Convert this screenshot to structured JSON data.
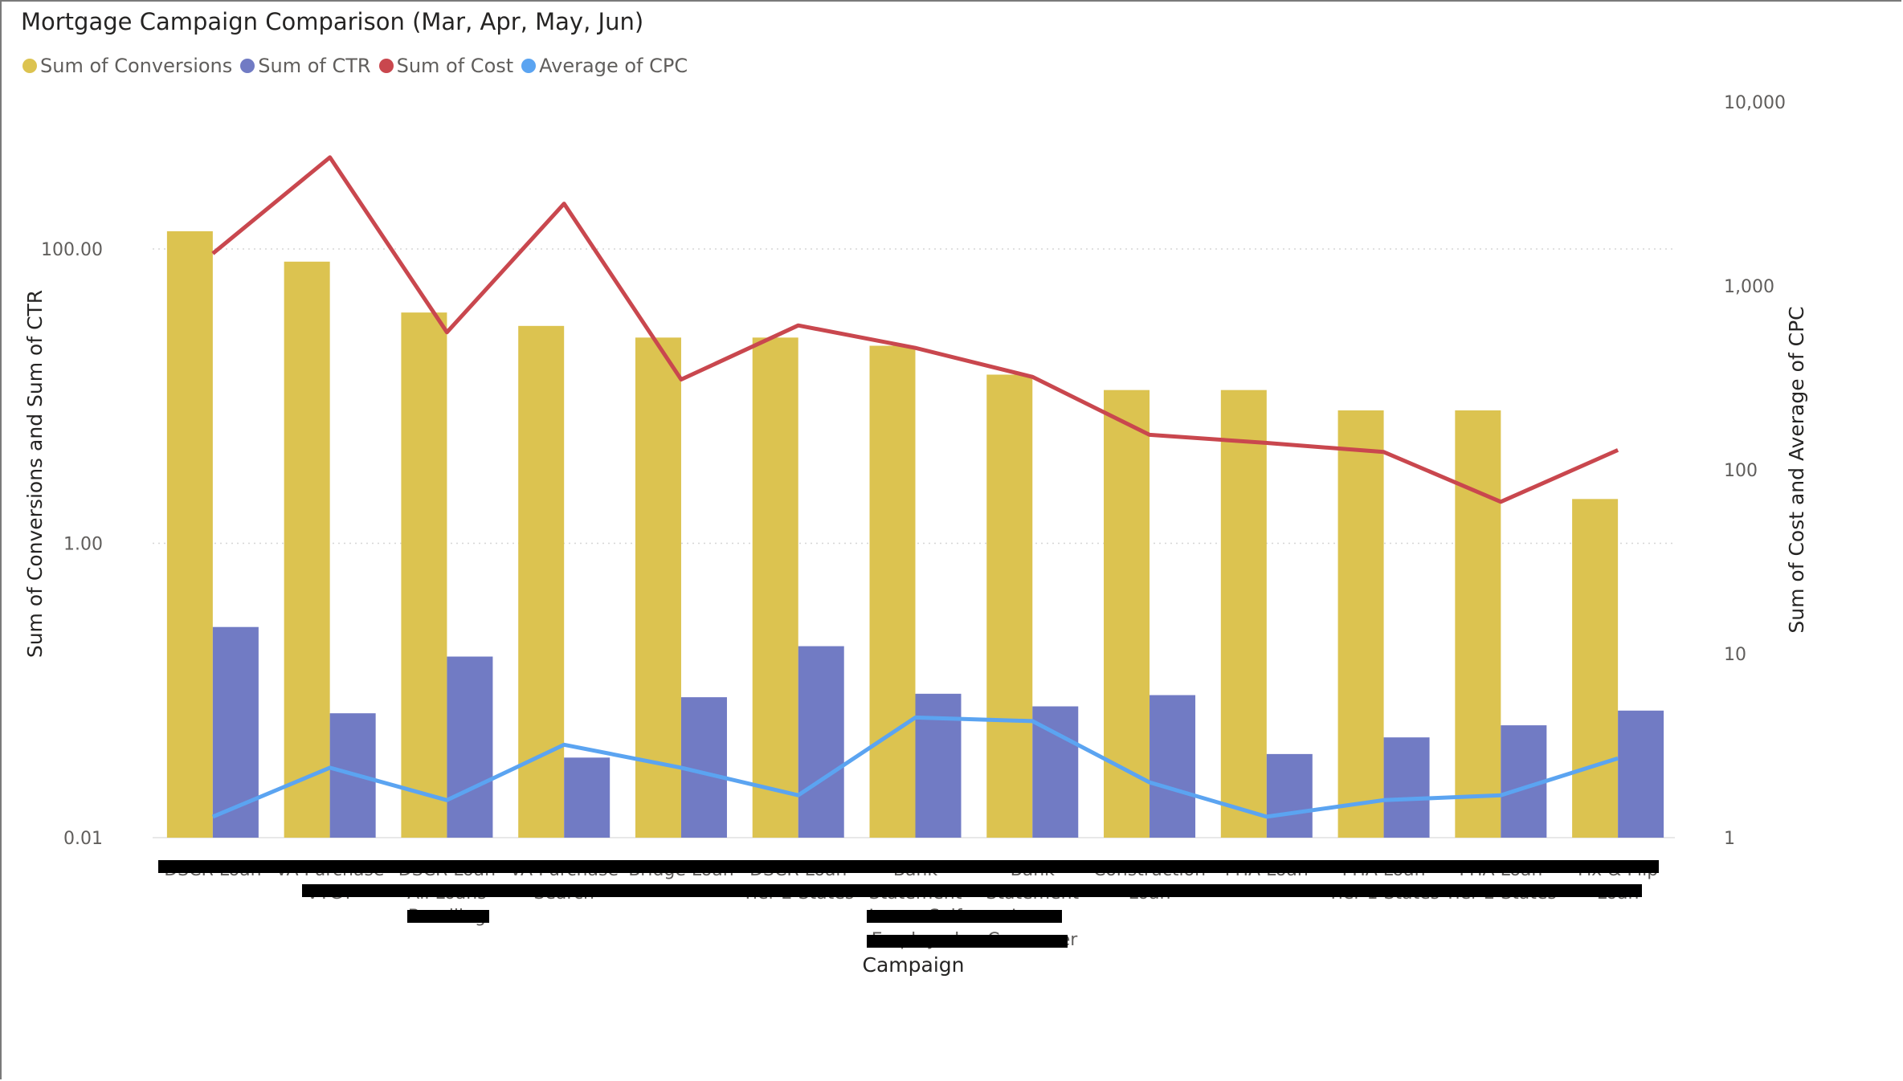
{
  "chart_data": {
    "type": "bar",
    "title": "Mortgage Campaign Comparison (Mar, Apr, May, Jun)",
    "xlabel": "Campaign",
    "ylabel_left": "Sum of Conversions and Sum of CTR",
    "ylabel_right": "Sum of Cost and Average of CPC",
    "y_left_scale": "log",
    "y_right_scale": "log",
    "y_left_ticks": [
      {
        "value": 0.01,
        "label": "0.01"
      },
      {
        "value": 1,
        "label": "1.00"
      },
      {
        "value": 100,
        "label": "100.00"
      }
    ],
    "y_right_ticks": [
      {
        "value": 1,
        "label": "1"
      },
      {
        "value": 10,
        "label": "10"
      },
      {
        "value": 100,
        "label": "100"
      },
      {
        "value": 1000,
        "label": "1,000"
      },
      {
        "value": 10000,
        "label": "10,000"
      }
    ],
    "ylim_left": [
      0.01,
      1000
    ],
    "ylim_right": [
      1,
      10000
    ],
    "grid": true,
    "legend_position": "top-left",
    "categories": [
      [
        "DSCR Loan"
      ],
      [
        "VA Purchase",
        "VTGT"
      ],
      [
        "DSCR Loan",
        "All Loans",
        "Bundling"
      ],
      [
        "VA Purchase",
        "Search"
      ],
      [
        "Bridge Loan"
      ],
      [
        "DSCR Loan",
        "Tier 2 States"
      ],
      [
        "Bank",
        "Statement",
        "Loan - Self",
        "Employed"
      ],
      [
        "Bank",
        "Statement",
        "Loan",
        "Consumer"
      ],
      [
        "Construction",
        "Loan"
      ],
      [
        "FHA Loan"
      ],
      [
        "FHA Loan",
        "Tier 1 States"
      ],
      [
        "FHA Loan",
        "Tier 2 States"
      ],
      [
        "Fix & Flip",
        "Loan"
      ]
    ],
    "category_labels_redacted": true,
    "series": [
      {
        "name": "Sum of Conversions",
        "kind": "bar",
        "axis": "left",
        "color": "#DCC350",
        "values": [
          132,
          82,
          37,
          30,
          25,
          25,
          22,
          14,
          11,
          11,
          8,
          8,
          2
        ]
      },
      {
        "name": "Sum of CTR",
        "kind": "bar",
        "axis": "left",
        "color": "#717BC4",
        "values": [
          0.27,
          0.07,
          0.17,
          0.035,
          0.09,
          0.2,
          0.095,
          0.078,
          0.093,
          0.037,
          0.048,
          0.058,
          0.073
        ]
      },
      {
        "name": "Sum of Cost",
        "kind": "line",
        "axis": "right",
        "color": "#C9474E",
        "values": [
          1500,
          5000,
          560,
          2800,
          310,
          610,
          460,
          320,
          155,
          140,
          125,
          67,
          128
        ]
      },
      {
        "name": "Average of CPC",
        "kind": "line",
        "axis": "right",
        "color": "#5BA4F1",
        "values": [
          1.3,
          2.4,
          1.6,
          3.2,
          2.4,
          1.7,
          4.5,
          4.3,
          2.0,
          1.3,
          1.6,
          1.7,
          2.7
        ]
      }
    ]
  }
}
